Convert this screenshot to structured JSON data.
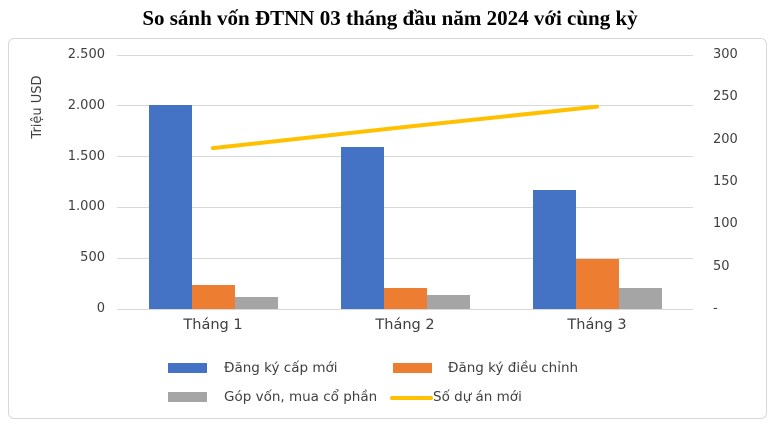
{
  "title": "So sánh vốn ĐTNN 03 tháng đầu năm 2024 với cùng kỳ",
  "chart_data": {
    "type": "combo-bar-line",
    "categories": [
      "Tháng 1",
      "Tháng 2",
      "Tháng 3"
    ],
    "series": [
      {
        "name": "Đăng ký cấp mới",
        "type": "bar",
        "axis": "left",
        "color": "#4472C4",
        "values": [
          2010,
          1590,
          1170
        ]
      },
      {
        "name": "Đăng ký điều chỉnh",
        "type": "bar",
        "axis": "left",
        "color": "#ED7D31",
        "values": [
          235,
          207,
          493
        ]
      },
      {
        "name": "Góp vốn, mua cổ phần",
        "type": "bar",
        "axis": "left",
        "color": "#A5A5A5",
        "values": [
          117,
          139,
          211
        ]
      },
      {
        "name": "Số dự án mới",
        "type": "line",
        "axis": "right",
        "color": "#FFC000",
        "values": [
          190,
          215,
          239
        ]
      }
    ],
    "left_axis": {
      "title": "Triệu USD",
      "min": 0,
      "max": 2500,
      "tick_step": 500,
      "tick_labels_top_to_bottom": [
        "2.500",
        "2.000",
        "1.500",
        "1.000",
        "500",
        "0"
      ]
    },
    "right_axis": {
      "min": 0,
      "max": 300,
      "tick_step": 50,
      "tick_labels_top_to_bottom": [
        "300",
        "250",
        "200",
        "150",
        "100",
        "50",
        "-"
      ]
    },
    "grid": "horizontal",
    "legend_position": "bottom"
  },
  "colors": {
    "gridline": "#D9D9D9",
    "axis_text": "#3F3F3F",
    "frame_border": "#D9D9D9",
    "background": "#FFFFFF",
    "title_text": "#000000"
  }
}
